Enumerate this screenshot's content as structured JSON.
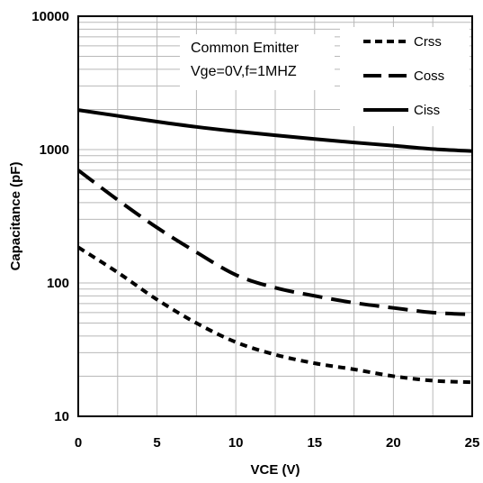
{
  "chart_data": {
    "type": "line",
    "xlabel": "VCE  (V)",
    "ylabel": "Capacitance  (pF)",
    "xlim": [
      0,
      25
    ],
    "ylim": [
      10,
      10000
    ],
    "yscale": "log",
    "grid": true,
    "legend_position": "top-right",
    "x_ticks": [
      "0",
      "5",
      "10",
      "15",
      "20",
      "25"
    ],
    "y_ticks": [
      "10",
      "100",
      "1000",
      "10000"
    ],
    "annotation": [
      "Common Emitter",
      "Vge=0V,f=1MHZ"
    ],
    "x": [
      0,
      2.5,
      5,
      7.5,
      10,
      12.5,
      15,
      17.5,
      20,
      22.5,
      25
    ],
    "series": [
      {
        "name": "Crss",
        "style": "short-dash",
        "values": [
          185,
          120,
          75,
          50,
          36,
          29,
          25,
          22.5,
          20,
          18.5,
          18
        ]
      },
      {
        "name": "Coss",
        "style": "long-dash",
        "values": [
          700,
          420,
          260,
          170,
          115,
          92,
          80,
          71,
          65,
          60,
          58
        ]
      },
      {
        "name": "Ciss",
        "style": "solid",
        "values": [
          1980,
          1790,
          1620,
          1480,
          1370,
          1280,
          1200,
          1130,
          1070,
          1010,
          975
        ]
      }
    ],
    "colors": {
      "lines": "#000000",
      "grid": "#b8b8b8",
      "background": "#ffffff"
    }
  }
}
